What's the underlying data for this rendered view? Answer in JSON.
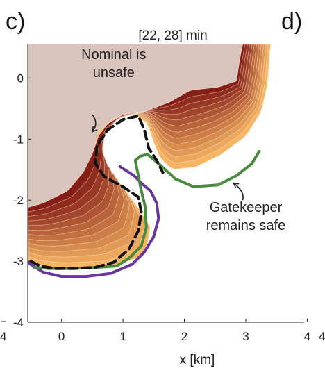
{
  "panels": {
    "left_label": "c)",
    "right_label": "d)"
  },
  "edge_ticks": {
    "left_bottom": "4",
    "right_bottom": "4"
  },
  "chart_data": {
    "type": "area",
    "title": "[22, 28] min",
    "xlabel": "x [km]",
    "ylabel": "",
    "xlim": [
      -0.55,
      3.95
    ],
    "ylim": [
      -4.0,
      0.55
    ],
    "x_ticks": [
      "0",
      "1",
      "2",
      "3",
      "4"
    ],
    "x_tick_values": [
      0,
      1,
      2,
      3,
      4
    ],
    "y_ticks": [
      "0",
      "-1",
      "-2",
      "-3",
      "-4"
    ],
    "y_tick_values": [
      0,
      -1,
      -2,
      -3,
      -4
    ],
    "grid": false,
    "legend": "none",
    "colors": {
      "fire_region": "#d8c4bc",
      "front_start": "#7a1010",
      "front_end": "#f6b563",
      "nominal": "#111111",
      "gatekeeper": "#4a8a3c",
      "purple_boundary": "#6a35a0"
    },
    "fire_region": {
      "x": [
        -0.55,
        -0.55,
        -0.3,
        0.1,
        0.35,
        0.5,
        0.6,
        0.75,
        1.0,
        1.35,
        1.75,
        2.1,
        2.55,
        2.85,
        2.9,
        2.95,
        -0.55
      ],
      "y": [
        0.55,
        -2.12,
        -2.05,
        -1.85,
        -1.55,
        -1.25,
        -0.95,
        -0.75,
        -0.6,
        -0.55,
        -0.4,
        -0.2,
        -0.15,
        -0.05,
        0.3,
        0.55,
        0.55
      ]
    },
    "spread_fronts": {
      "count": 12,
      "start": {
        "x": [
          -0.55,
          -0.3,
          0.1,
          0.35,
          0.5,
          0.6,
          0.75,
          1.0,
          1.35,
          1.75,
          2.1,
          2.55,
          2.85,
          2.9,
          2.95
        ],
        "y": [
          -2.12,
          -2.05,
          -1.85,
          -1.55,
          -1.25,
          -0.95,
          -0.75,
          -0.6,
          -0.55,
          -0.4,
          -0.2,
          -0.15,
          -0.05,
          0.3,
          0.55
        ]
      },
      "end": {
        "x": [
          -0.55,
          -0.3,
          0.1,
          0.8,
          1.35,
          1.45,
          1.2,
          0.7,
          0.5,
          0.6,
          0.9,
          1.2,
          1.4,
          1.5,
          1.6,
          1.8,
          2.2,
          2.6,
          3.0,
          3.25,
          3.35,
          3.4
        ],
        "y": [
          -3.0,
          -3.08,
          -3.12,
          -3.1,
          -2.9,
          -2.45,
          -2.05,
          -1.75,
          -1.3,
          -0.85,
          -0.62,
          -0.6,
          -0.75,
          -1.05,
          -1.3,
          -1.5,
          -1.45,
          -1.25,
          -0.95,
          -0.55,
          -0.1,
          0.55
        ]
      }
    },
    "series": [
      {
        "name": "Nominal",
        "style": "dashed",
        "x": [
          -0.5,
          -0.35,
          -0.1,
          0.2,
          0.55,
          0.85,
          1.1,
          1.25,
          1.3,
          1.25,
          1.0,
          0.7,
          0.55,
          0.58,
          0.75,
          1.0,
          1.25,
          1.35,
          1.42,
          1.55,
          1.65
        ],
        "y": [
          -3.0,
          -3.08,
          -3.12,
          -3.12,
          -3.1,
          -3.02,
          -2.8,
          -2.5,
          -2.2,
          -1.95,
          -1.78,
          -1.62,
          -1.4,
          -1.1,
          -0.85,
          -0.68,
          -0.62,
          -0.85,
          -1.15,
          -1.35,
          -1.55
        ]
      },
      {
        "name": "Gatekeeper",
        "style": "solid",
        "x": [
          -0.45,
          -0.2,
          0.2,
          0.6,
          0.9,
          1.1,
          1.3,
          1.38,
          1.36,
          1.3,
          1.25,
          1.2,
          1.28,
          1.4,
          1.6,
          1.85,
          2.15,
          2.55,
          2.85,
          3.1,
          3.22
        ],
        "y": [
          -3.1,
          -3.12,
          -3.12,
          -3.1,
          -3.08,
          -2.95,
          -2.75,
          -2.45,
          -2.1,
          -1.85,
          -1.6,
          -1.35,
          -1.28,
          -1.25,
          -1.42,
          -1.65,
          -1.78,
          -1.75,
          -1.6,
          -1.4,
          -1.2
        ]
      },
      {
        "name": "",
        "style": "solid-purple",
        "x": [
          -0.55,
          -0.3,
          0.0,
          0.4,
          0.8,
          1.15,
          1.35,
          1.5,
          1.58,
          1.55,
          1.45,
          1.3,
          1.18,
          0.95
        ],
        "y": [
          -3.02,
          -3.18,
          -3.25,
          -3.25,
          -3.2,
          -3.05,
          -2.85,
          -2.6,
          -2.3,
          -2.05,
          -1.85,
          -1.72,
          -1.6,
          -1.45
        ]
      }
    ],
    "annotations": [
      {
        "lines": [
          "Nominal is",
          "unsafe"
        ],
        "text_x": 0.85,
        "text_y": 0.15,
        "arrow_from": [
          0.5,
          -0.6
        ],
        "arrow_to": [
          0.5,
          -0.88
        ]
      },
      {
        "lines": [
          "Gatekeeper",
          "remains safe"
        ],
        "text_x": 3.0,
        "text_y": -2.35,
        "arrow_from": [
          2.95,
          -2.0
        ],
        "arrow_to": [
          2.8,
          -1.72
        ]
      }
    ]
  }
}
